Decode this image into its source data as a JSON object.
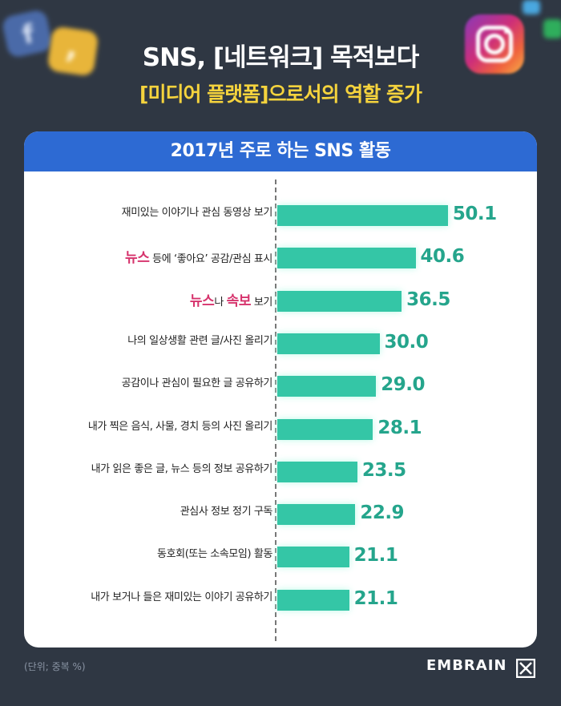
{
  "header": {
    "title_line1": "SNS, [네트워크] 목적보다",
    "title_line2": "[미디어 플랫폼]으로서의 역할 증가"
  },
  "chart_data": {
    "type": "bar",
    "orientation": "horizontal",
    "title": "2017년 주로 하는 SNS 활동",
    "categories": [
      "재미있는 이야기나 관심 동영상 보기",
      "뉴스 등에 ‘좋아요’ 공감/관심 표시",
      "뉴스나 속보 보기",
      "나의 일상생활 관련 글/사진 올리기",
      "공감이나 관심이 필요한 글 공유하기",
      "내가 찍은 음식, 사물, 경치 등의 사진 올리기",
      "내가 읽은 좋은 글, 뉴스 등의 정보 공유하기",
      "관심사 정보 정기 구독",
      "동호회(또는 소속모임) 활동",
      "내가 보거나 들은 재미있는 이야기 공유하기"
    ],
    "label_parts": [
      [
        {
          "t": "재미있는 이야기나 관심 동영상 보기"
        }
      ],
      [
        {
          "t": "뉴스",
          "hl": true
        },
        {
          "t": " 등에 ‘좋아요’ 공감/관심 표시"
        }
      ],
      [
        {
          "t": "뉴스",
          "hl": true
        },
        {
          "t": "나 "
        },
        {
          "t": "속보",
          "hl": true
        },
        {
          "t": " 보기"
        }
      ],
      [
        {
          "t": "나의 일상생활 관련 글/사진 올리기"
        }
      ],
      [
        {
          "t": "공감이나 관심이 필요한 글 공유하기"
        }
      ],
      [
        {
          "t": "내가 찍은 음식, 사물, 경치 등의 사진 올리기"
        }
      ],
      [
        {
          "t": "내가 읽은 좋은 글, 뉴스 등의 정보 공유하기"
        }
      ],
      [
        {
          "t": "관심사 정보 정기 구독"
        }
      ],
      [
        {
          "t": "동호회(또는 소속모임) 활동"
        }
      ],
      [
        {
          "t": "내가 보거나 들은 재미있는 이야기 공유하기"
        }
      ]
    ],
    "values": [
      50.1,
      40.6,
      36.5,
      30.0,
      29.0,
      28.1,
      23.5,
      22.9,
      21.1,
      21.1
    ],
    "value_labels": [
      "50.1",
      "40.6",
      "36.5",
      "30.0",
      "29.0",
      "28.1",
      "23.5",
      "22.9",
      "21.1",
      "21.1"
    ],
    "xlim": [
      0,
      56
    ],
    "grid": false,
    "colors": {
      "bar": "#34c6a6",
      "value": "#25a58c",
      "highlight": "#d6336c",
      "header": "#2d6ad3"
    }
  },
  "footer": {
    "note": "(단위; 중복 %)",
    "brand": "EMBRAIN"
  },
  "decorations": [
    "facebook-icon",
    "chat-icon",
    "instagram-icon",
    "twitter-icon",
    "messenger-icon"
  ]
}
